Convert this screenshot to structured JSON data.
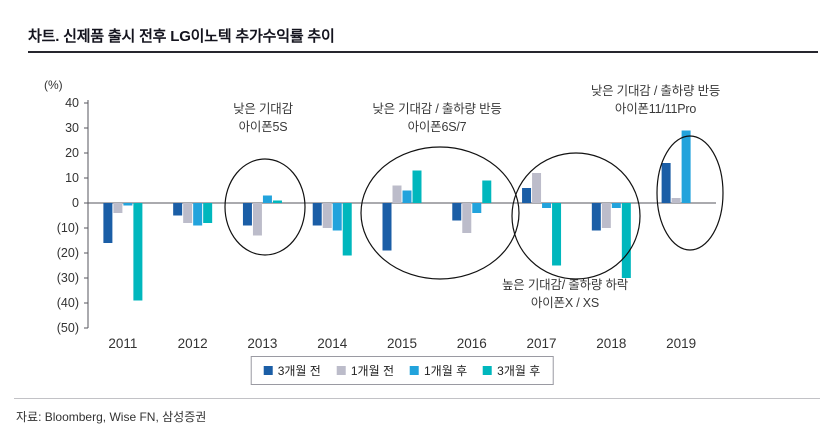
{
  "header": {
    "title": "차트. 신제품 출시 전후 LG이노텍 추가수익률 추이"
  },
  "footer": {
    "source": "자료: Bloomberg, Wise FN, 삼성증권"
  },
  "chart_data": {
    "type": "bar",
    "title": "차트. 신제품 출시 전후 LG이노텍 추가수익률 추이",
    "unit_label": "(%)",
    "categories": [
      "2011",
      "2012",
      "2013",
      "2014",
      "2015",
      "2016",
      "2017",
      "2018",
      "2019"
    ],
    "series": [
      {
        "name": "3개월 전",
        "color": "#1b5ea6",
        "values": [
          -16,
          -5,
          -9,
          -9,
          -19,
          -7,
          6,
          -11,
          16
        ]
      },
      {
        "name": "1개월 전",
        "color": "#bcbcca",
        "values": [
          -4,
          -8,
          -13,
          -10,
          7,
          -12,
          12,
          -10,
          2
        ]
      },
      {
        "name": "1개월 후",
        "color": "#22a3dc",
        "values": [
          -1,
          -9,
          3,
          -11,
          5,
          -4,
          -2,
          -2,
          29
        ]
      },
      {
        "name": "3개월 후",
        "color": "#00b7bd",
        "values": [
          -39,
          -8,
          1,
          -21,
          13,
          9,
          -25,
          -30,
          0
        ]
      }
    ],
    "ylim": [
      -50,
      40
    ],
    "yticks": [
      40,
      30,
      20,
      10,
      0,
      -10,
      -20,
      -30,
      -40,
      -50
    ],
    "ytick_labels": [
      "40",
      "30",
      "20",
      "10",
      "0",
      "(10)",
      "(20)",
      "(30)",
      "(40)",
      "(50)"
    ],
    "grid": false,
    "legend_position": "bottom",
    "annotations": [
      {
        "line1": "낮은 기대감",
        "line2": "아이폰5S"
      },
      {
        "line1": "낮은 기대감 / 출하량 반등",
        "line2": "아이폰6S/7"
      },
      {
        "line1": "낮은 기대감 / 출하량 반등",
        "line2": "아이폰11/11Pro"
      },
      {
        "line1": "높은 기대감/ 출하량 하락",
        "line2": "아이폰X / XS"
      }
    ]
  }
}
